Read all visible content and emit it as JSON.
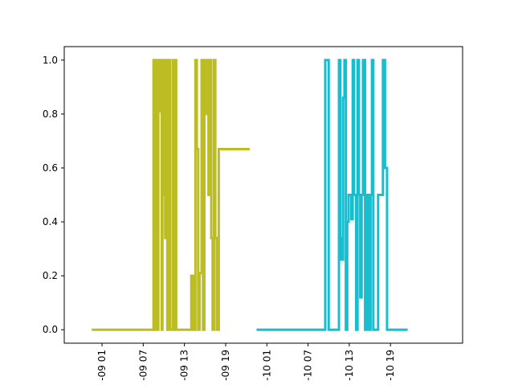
{
  "chart_data": {
    "type": "line",
    "title": "",
    "xlabel": "",
    "ylabel": "",
    "x_unit": "hour",
    "xlim": [
      -4.5,
      53.5
    ],
    "ylim": [
      -0.05,
      1.05
    ],
    "x_ticks": [
      {
        "value": 1,
        "label": "-09 01"
      },
      {
        "value": 7,
        "label": "-09 07"
      },
      {
        "value": 13,
        "label": "-09 13"
      },
      {
        "value": 19,
        "label": "-09 19"
      },
      {
        "value": 25,
        "label": "-10 01"
      },
      {
        "value": 31,
        "label": "-10 07"
      },
      {
        "value": 37,
        "label": "-10 13"
      },
      {
        "value": 43,
        "label": "-10 19"
      }
    ],
    "y_ticks": [
      {
        "value": 0.0,
        "label": "0.0"
      },
      {
        "value": 0.2,
        "label": "0.2"
      },
      {
        "value": 0.4,
        "label": "0.4"
      },
      {
        "value": 0.6,
        "label": "0.6"
      },
      {
        "value": 0.8,
        "label": "0.8"
      },
      {
        "value": 1.0,
        "label": "1.0"
      }
    ],
    "grid": false,
    "series": [
      {
        "color": "#bcbd22",
        "x": [
          -0.5,
          8.5,
          8.5,
          8.6,
          8.6,
          8.8,
          8.8,
          9.0,
          9.0,
          9.2,
          9.2,
          9.4,
          9.4,
          9.6,
          9.6,
          9.7,
          9.7,
          9.8,
          9.8,
          10.0,
          10.0,
          10.2,
          10.2,
          10.3,
          10.3,
          10.5,
          10.5,
          10.7,
          10.7,
          10.9,
          10.9,
          11.3,
          11.3,
          11.4,
          11.4,
          11.6,
          11.6,
          11.8,
          11.8,
          12.2,
          12.2,
          12.5,
          12.5,
          14.0,
          14.0,
          14.3,
          14.3,
          14.6,
          14.6,
          14.8,
          14.8,
          15.0,
          15.0,
          15.2,
          15.2,
          15.5,
          15.5,
          15.7,
          15.7,
          15.9,
          15.9,
          16.1,
          16.1,
          16.3,
          16.3,
          16.5,
          16.5,
          16.7,
          16.7,
          16.9,
          16.9,
          17.1,
          17.1,
          17.3,
          17.3,
          17.5,
          17.5,
          17.7,
          17.7,
          18.0,
          18.0,
          22.5
        ],
        "y": [
          0,
          0,
          1,
          1,
          0,
          0,
          1,
          1,
          0,
          0,
          1,
          1,
          0.81,
          0.81,
          1,
          1,
          0,
          0,
          0.5,
          0.5,
          1,
          1,
          0.34,
          0.34,
          1,
          1,
          0,
          0,
          1,
          1,
          0,
          0,
          1,
          1,
          0,
          0,
          1,
          1,
          0,
          0,
          0,
          0,
          0,
          0,
          0.2,
          0.2,
          0,
          0,
          1,
          1,
          0.67,
          0.67,
          0,
          0,
          0.21,
          0.21,
          1,
          1,
          0,
          0,
          1,
          1,
          0.8,
          0.8,
          1,
          1,
          0.5,
          0.5,
          1,
          1,
          0.34,
          0.34,
          0,
          0,
          1,
          1,
          0.34,
          0.34,
          0,
          0,
          0.67,
          0.67
        ]
      },
      {
        "color": "#17becf",
        "x": [
          23.5,
          33.5,
          33.5,
          34.0,
          34.0,
          35.5,
          35.5,
          35.7,
          35.7,
          35.8,
          35.8,
          36.1,
          36.1,
          36.3,
          36.3,
          36.5,
          36.5,
          36.7,
          36.7,
          36.9,
          36.9,
          37.3,
          37.3,
          37.5,
          37.5,
          37.7,
          37.7,
          38.0,
          38.0,
          38.2,
          38.2,
          38.4,
          38.4,
          38.6,
          38.6,
          38.8,
          38.8,
          39.0,
          39.0,
          39.3,
          39.3,
          39.5,
          39.5,
          39.8,
          39.8,
          40.1,
          40.1,
          40.3,
          40.3,
          40.5,
          40.5,
          40.7,
          40.7,
          41.2,
          41.2,
          41.9,
          41.9,
          42.2,
          42.2,
          42.5,
          42.5,
          45.5
        ],
        "y": [
          0,
          0,
          1,
          1,
          0,
          0,
          1,
          1,
          0.34,
          0.34,
          0.26,
          0.26,
          0.86,
          0.86,
          1,
          1,
          0,
          0,
          0.4,
          0.4,
          0.5,
          0.5,
          0.41,
          0.41,
          1,
          1,
          0.5,
          0.5,
          0,
          0,
          1,
          1,
          0.5,
          0.5,
          0.12,
          0.12,
          0.5,
          0.5,
          1,
          1,
          0,
          0,
          0.5,
          0.5,
          0,
          0,
          0.5,
          0.5,
          1,
          1,
          0,
          0,
          0,
          0,
          0.5,
          0.5,
          1,
          1,
          0.6,
          0.6,
          0,
          0
        ]
      }
    ]
  }
}
